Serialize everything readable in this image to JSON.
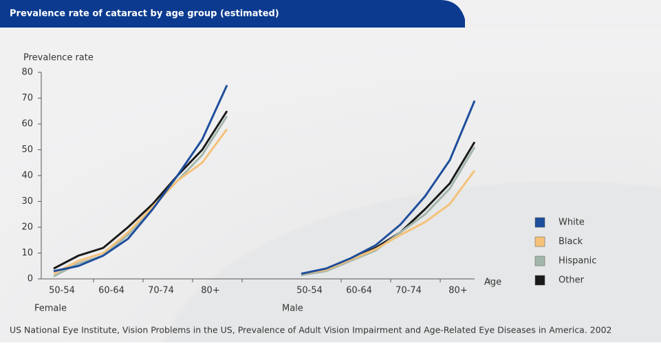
{
  "chart_data": {
    "type": "line",
    "title": "Prevalence rate of cataract by age group (estimated)",
    "y_label": "Prevalence rate",
    "x_label": "Age",
    "source": "US National Eye Institute, Vision Problems in the US, Prevalence of Adult Vision Impairment and Age-Related Eye Diseases in America. 2002",
    "ylim": [
      0,
      80
    ],
    "yticks": [
      0,
      10,
      20,
      30,
      40,
      50,
      60,
      70,
      80
    ],
    "legend": [
      {
        "name": "White",
        "color": "#1f4e9c"
      },
      {
        "name": "Black",
        "color": "#f5c27a"
      },
      {
        "name": "Hispanic",
        "color": "#a3b6aa"
      },
      {
        "name": "Other",
        "color": "#1a1a1a"
      }
    ],
    "panels": [
      {
        "label": "Female",
        "categories": [
          "50-54",
          null,
          "60-64",
          null,
          "70-74",
          null,
          "80+",
          null
        ],
        "series": [
          {
            "values": [
              3,
              5,
              9,
              15.5,
              27,
              40,
              54,
              75
            ]
          },
          {
            "values": [
              2,
              7,
              10,
              18,
              28,
              38,
              45,
              58
            ]
          },
          {
            "values": [
              1,
              6,
              9,
              17,
              28,
              38,
              48,
              63
            ]
          },
          {
            "values": [
              4,
              9,
              12,
              20,
              29,
              40,
              50,
              65
            ]
          }
        ]
      },
      {
        "label": "Male",
        "categories": [
          "50-54",
          null,
          "60-64",
          null,
          "70-74",
          null,
          "80+",
          null
        ],
        "series": [
          {
            "values": [
              2,
              4,
              8,
              13,
              21,
              32,
              46,
              69
            ]
          },
          {
            "values": [
              2,
              3.5,
              7.5,
              11.5,
              17,
              22,
              29,
              42
            ]
          },
          {
            "values": [
              1.5,
              3,
              7,
              11,
              18,
              25,
              35,
              51
            ]
          },
          {
            "values": [
              1.5,
              3.5,
              7.5,
              12,
              18,
              27,
              37,
              53
            ]
          }
        ]
      }
    ]
  }
}
